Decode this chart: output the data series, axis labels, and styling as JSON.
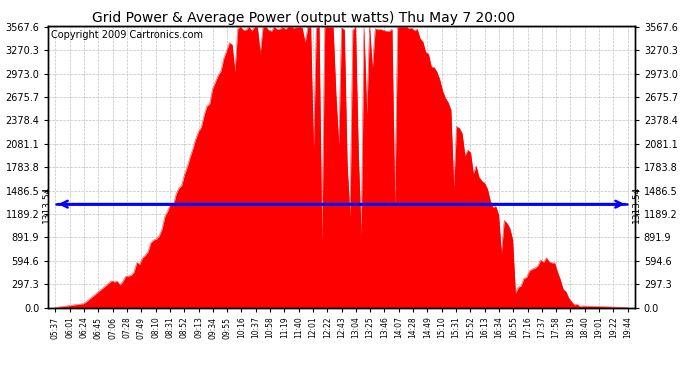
{
  "title": "Grid Power & Average Power (output watts) Thu May 7 20:00",
  "copyright": "Copyright 2009 Cartronics.com",
  "yticks": [
    0.0,
    297.3,
    594.6,
    891.9,
    1189.2,
    1486.5,
    1783.8,
    2081.1,
    2378.4,
    2675.7,
    2973.0,
    3270.3,
    3567.6
  ],
  "ymax": 3567.6,
  "average_line": 1313.54,
  "avg_label": "1313.54",
  "xtick_labels": [
    "05:37",
    "06:01",
    "06:24",
    "06:45",
    "07:06",
    "07:28",
    "07:49",
    "08:10",
    "08:31",
    "08:52",
    "09:13",
    "09:34",
    "09:55",
    "10:16",
    "10:37",
    "10:58",
    "11:19",
    "11:40",
    "12:01",
    "12:22",
    "12:43",
    "13:04",
    "13:25",
    "13:46",
    "14:07",
    "14:28",
    "14:49",
    "15:10",
    "15:31",
    "15:52",
    "16:13",
    "16:34",
    "16:55",
    "17:16",
    "17:37",
    "17:58",
    "18:19",
    "18:40",
    "19:01",
    "19:22",
    "19:44"
  ],
  "bar_color": "#FF0000",
  "avg_line_color": "#0000FF",
  "background_color": "#FFFFFF",
  "plot_bg_color": "#FFFFFF",
  "grid_color": "#C0C0C0",
  "title_fontsize": 10,
  "copyright_fontsize": 7,
  "n_ticks": 41,
  "n_points": 205
}
